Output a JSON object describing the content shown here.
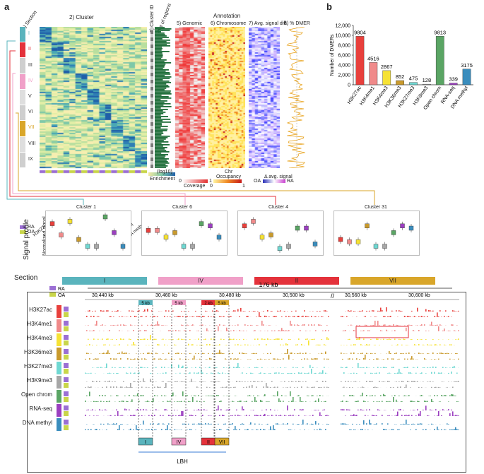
{
  "panel_a": {
    "label": "a",
    "heatmap_headers": {
      "section": "1) Section",
      "cluster": "2) Cluster",
      "cluster_id": "3) Cluster ID",
      "n_regions": "4) # of regions",
      "annotation": "Annotation",
      "genomic": "5) Genomic",
      "chromosome": "6) Chromosome",
      "avg_signal_diff": "7) Avg. signal diff.",
      "pct_dmer": "8) % DMER"
    },
    "sections": [
      "I",
      "II",
      "III",
      "IV",
      "V",
      "VI",
      "VII",
      "VIII",
      "IX"
    ],
    "marks": [
      "H3K27ac",
      "H3K4me1",
      "H3K4me3",
      "H3K36me3",
      "H3K27me3",
      "H3K9me3",
      "Open chrom",
      "RNA-seq",
      "DNA methyl"
    ],
    "condition_legend": {
      "ra": "RA",
      "oa": "OA"
    },
    "colorbar_labels": {
      "enrichment": "Enrichment",
      "coverage": "Coverage",
      "occupancy": "Occupancy",
      "avg_signal": "Δ avg. signal",
      "cov_min": "0",
      "cov_max": "1",
      "occ_min": "0",
      "occ_max": "1",
      "avg_left": "OA",
      "avg_right": "RA",
      "log_axis": "(log10)",
      "chr_axis": "Chr"
    },
    "signal_profile": {
      "title": "Signal profile",
      "ylabel": "Normalized signal",
      "clusters": [
        "Cluster 1",
        "Cluster 6",
        "Cluster 4",
        "Cluster 31"
      ]
    },
    "section_row": {
      "title": "Section",
      "bands": [
        "I",
        "IV",
        "II",
        "VII"
      ]
    },
    "browser": {
      "span_label": "176 kb",
      "coords_left": [
        "30,440 kb",
        "30,460 kb",
        "30,480 kb",
        "30,500 kb"
      ],
      "coords_right": [
        "30,560 kb",
        "30,600 kb"
      ],
      "kb_labels": [
        "5 kb",
        "5 kb",
        "2 kb",
        "5 kb"
      ],
      "tracks": [
        "H3K27ac",
        "H3K4me1",
        "H3K4me3",
        "H3K36me3",
        "H3K27me3",
        "H3K9me3",
        "Open chrom",
        "RNA-seq",
        "DNA methyl"
      ],
      "bottom_sections": [
        "I",
        "IV",
        "II",
        "VII"
      ],
      "gene": "LBH"
    }
  },
  "panel_b": {
    "label": "b"
  },
  "colors": {
    "I": "#5ab4bd",
    "II": "#e4323b",
    "IV": "#f0a0c8",
    "VII": "#d9a62a",
    "H3K27ac": "#e8403c",
    "H3K4me1": "#f08a8a",
    "H3K4me3": "#f6e234",
    "H3K36me3": "#c99a2c",
    "H3K27me3": "#6fd8d2",
    "H3K9me3": "#a7a7a7",
    "Open chrom": "#5aa564",
    "RNA-seq": "#9b3fc0",
    "DNA methyl": "#3a8dbd"
  },
  "chart_data": {
    "type": "bar",
    "title": "",
    "xlabel": "",
    "ylabel": "Number of DMERs",
    "ylim": [
      0,
      12000
    ],
    "yticks": [
      "0",
      "2,000",
      "4,000",
      "6,000",
      "8,000",
      "10,000",
      "12,000"
    ],
    "categories": [
      "H3K27ac",
      "H3K4me1",
      "H3K4me3",
      "H3K36me3",
      "H3K27me3",
      "H3K9me3",
      "Open chrom",
      "RNA-seq",
      "DNA methyl"
    ],
    "values": [
      9804,
      4516,
      2867,
      852,
      475,
      128,
      9813,
      339,
      3175
    ],
    "value_labels": [
      "9804",
      "4516",
      "2867",
      "852",
      "475",
      "128",
      "9813",
      "339",
      "3175"
    ],
    "grid": false
  }
}
